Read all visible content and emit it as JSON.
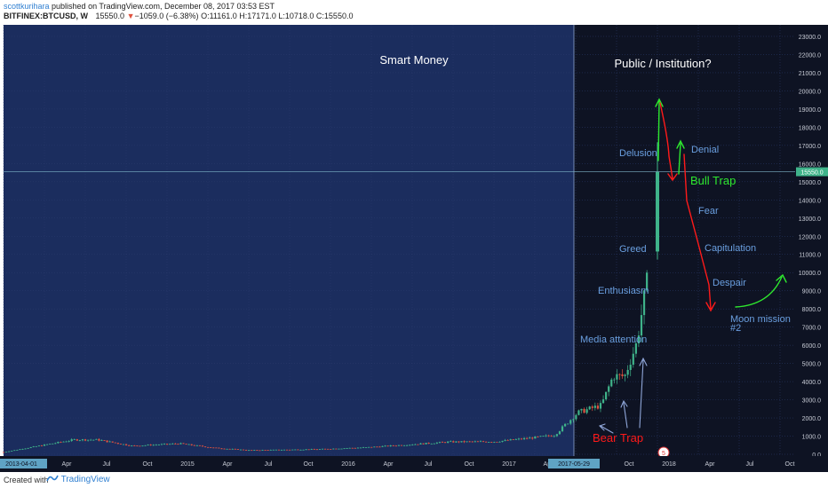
{
  "header": {
    "author": "scottkurihara",
    "published": " published on TradingView.com, December 08, 2017 03:53 EST",
    "symbol": "BITFINEX:BTCUSD, W",
    "last": "15550.0",
    "change": "−1059.0 (−6.38%)",
    "open": "O:11161.0",
    "high": "H:17171.0",
    "low": "L:10718.0",
    "close": "C:15550.0",
    "down_arrow": "▼"
  },
  "footer": {
    "created_with": "Created with",
    "brand": "TradingView",
    "logo_icon": "tradingview-logo-icon"
  },
  "colors": {
    "bg_left": "#1b2d5e",
    "bg_right": "#0e1323",
    "candle_up": "#3fb38a",
    "candle_down": "#e0533f",
    "annotation_text": "#6a9fe0",
    "red_arrow": "#ff1a1a",
    "green_arrow": "#2ee82e",
    "axis_text": "#c8ccd6"
  },
  "chart_data": {
    "type": "candlestick",
    "title": "",
    "ylim": [
      0,
      23500
    ],
    "y_ticks": [
      "0.0",
      "1000.0",
      "2000.0",
      "3000.0",
      "4000.0",
      "5000.0",
      "6000.0",
      "7000.0",
      "8000.0",
      "9000.0",
      "10000.0",
      "11000.0",
      "12000.0",
      "13000.0",
      "14000.0",
      "15000.0",
      "16000.0",
      "17000.0",
      "18000.0",
      "19000.0",
      "20000.0",
      "21000.0",
      "22000.0",
      "23000.0"
    ],
    "x_ticks": [
      "2013-04-01",
      "Apr",
      "Jul",
      "Oct",
      "2015",
      "Apr",
      "Jul",
      "Oct",
      "2016",
      "Apr",
      "Jul",
      "Oct",
      "2017",
      "Apr",
      "2017-05-29",
      "Oct",
      "2018",
      "Apr",
      "Jul",
      "Oct"
    ],
    "current_price_label": "15550.0",
    "price_series": [
      {
        "x": "2013-04",
        "o": 100,
        "h": 260,
        "l": 60,
        "c": 120
      },
      {
        "x": "2013-10",
        "o": 150,
        "h": 900,
        "l": 120,
        "c": 800
      },
      {
        "x": "2013-12",
        "o": 800,
        "h": 1200,
        "l": 500,
        "c": 800
      },
      {
        "x": "2014-03",
        "o": 600,
        "h": 700,
        "l": 400,
        "c": 460
      },
      {
        "x": "2014-07",
        "o": 600,
        "h": 650,
        "l": 550,
        "c": 590
      },
      {
        "x": "2014-10",
        "o": 400,
        "h": 420,
        "l": 290,
        "c": 350
      },
      {
        "x": "2015-01",
        "o": 300,
        "h": 320,
        "l": 170,
        "c": 220
      },
      {
        "x": "2015-07",
        "o": 260,
        "h": 310,
        "l": 240,
        "c": 280
      },
      {
        "x": "2015-11",
        "o": 320,
        "h": 490,
        "l": 300,
        "c": 380
      },
      {
        "x": "2016-06",
        "o": 530,
        "h": 770,
        "l": 520,
        "c": 680
      },
      {
        "x": "2016-10",
        "o": 610,
        "h": 730,
        "l": 600,
        "c": 700
      },
      {
        "x": "2017-01",
        "o": 960,
        "h": 1150,
        "l": 780,
        "c": 900
      },
      {
        "x": "2017-03",
        "o": 1200,
        "h": 1300,
        "l": 900,
        "c": 1050
      },
      {
        "x": "2017-05",
        "o": 1400,
        "h": 2700,
        "l": 1400,
        "c": 2300
      },
      {
        "x": "2017-06",
        "o": 2400,
        "h": 3000,
        "l": 2200,
        "c": 2500
      },
      {
        "x": "2017-07",
        "o": 2500,
        "h": 2800,
        "l": 1800,
        "c": 2700
      },
      {
        "x": "2017-08",
        "o": 2800,
        "h": 4400,
        "l": 2700,
        "c": 4300
      },
      {
        "x": "2017-09",
        "o": 4600,
        "h": 5000,
        "l": 3000,
        "c": 4300
      },
      {
        "x": "2017-10",
        "o": 4400,
        "h": 6100,
        "l": 4200,
        "c": 6100
      },
      {
        "x": "2017-11",
        "o": 6300,
        "h": 10000,
        "l": 5500,
        "c": 9900
      },
      {
        "x": "2017-12",
        "o": 11161,
        "h": 17171,
        "l": 10718,
        "c": 15550
      }
    ],
    "regions": [
      {
        "label": "Smart Money"
      },
      {
        "label": "Public / Institution?"
      }
    ],
    "annotations": {
      "bear_trap": "Bear Trap",
      "media_attention": "Media attention",
      "enthusiasm": "Enthusiasm",
      "greed": "Greed",
      "delusion": "Delusion",
      "denial": "Denial",
      "bull_trap": "Bull Trap",
      "fear": "Fear",
      "capitulation": "Capitulation",
      "despair": "Despair",
      "moon_mission_1": "Moon mission",
      "moon_mission_2": "#2"
    },
    "event_badge": "5"
  }
}
